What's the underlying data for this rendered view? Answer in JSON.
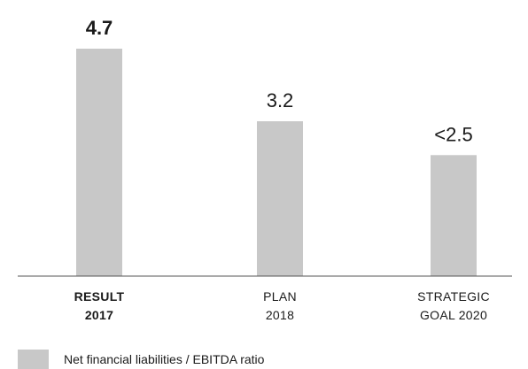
{
  "chart_data": {
    "type": "bar",
    "categories": [
      {
        "lines": [
          "RESULT",
          "2017"
        ],
        "bold": true
      },
      {
        "lines": [
          "PLAN",
          "2018"
        ],
        "bold": false
      },
      {
        "lines": [
          "STRATEGIC",
          "GOAL 2020"
        ],
        "bold": false
      }
    ],
    "values": [
      4.7,
      3.2,
      2.5
    ],
    "value_labels": [
      "4.7",
      "3.2",
      "<2.5"
    ],
    "ylim": [
      0,
      5
    ],
    "grid": false,
    "legend": {
      "position": "bottom-left",
      "entries": [
        {
          "name": "Net financial liabilities / EBITDA ratio",
          "color": "#c8c8c8"
        }
      ]
    },
    "colors": {
      "bar": "#c8c8c8",
      "axis": "#555555",
      "text": "#1a1a1a"
    }
  }
}
